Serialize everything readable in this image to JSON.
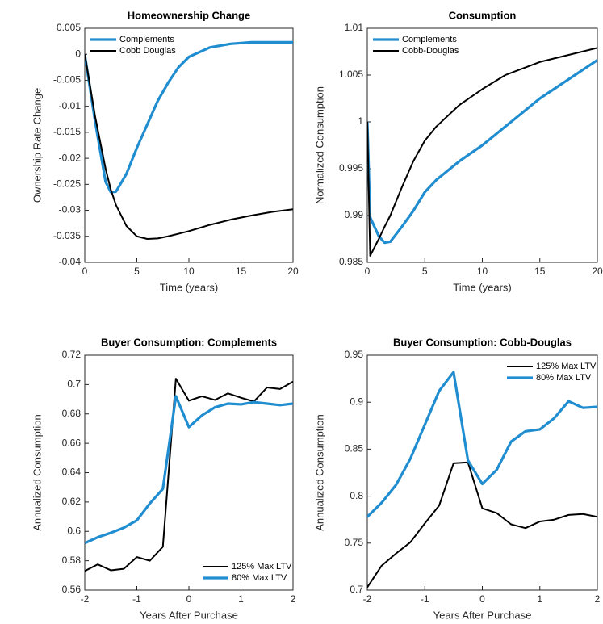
{
  "chart_data": [
    {
      "type": "line",
      "title": "Homeownership Change",
      "xlabel": "Time (years)",
      "ylabel": "Ownership Rate Change",
      "x": [
        0,
        1,
        2,
        2.5,
        3,
        4,
        5,
        6,
        7,
        8,
        9,
        10,
        12,
        14,
        16,
        18,
        20
      ],
      "series": [
        {
          "name": "Complements",
          "color": "#1f8dcf",
          "values": [
            0,
            -0.013,
            -0.0245,
            -0.0265,
            -0.0264,
            -0.023,
            -0.018,
            -0.0135,
            -0.009,
            -0.0055,
            -0.0025,
            -0.0005,
            0.0013,
            0.002,
            0.0023,
            0.0023,
            0.0023
          ]
        },
        {
          "name": "Cobb Douglas",
          "color": "#000000",
          "values": [
            0,
            -0.012,
            -0.022,
            -0.026,
            -0.029,
            -0.033,
            -0.035,
            -0.0355,
            -0.0354,
            -0.035,
            -0.0345,
            -0.034,
            -0.0328,
            -0.0318,
            -0.031,
            -0.0303,
            -0.0298
          ]
        }
      ],
      "xlim": [
        0,
        20
      ],
      "ylim": [
        -0.04,
        0.005
      ],
      "xticks": [
        0,
        5,
        10,
        15,
        20
      ],
      "yticks": [
        -0.04,
        -0.035,
        -0.03,
        -0.025,
        -0.02,
        -0.015,
        -0.01,
        -0.005,
        0,
        0.005
      ],
      "legend": "upper left"
    },
    {
      "type": "line",
      "title": "Consumption",
      "xlabel": "Time (years)",
      "ylabel": "Normalized Consumption",
      "x": [
        0,
        0.25,
        1,
        1.5,
        2,
        3,
        4,
        5,
        6,
        8,
        10,
        12,
        15,
        20
      ],
      "series": [
        {
          "name": "Complements",
          "color": "#1f8dcf",
          "values": [
            1,
            0.9898,
            0.9878,
            0.9871,
            0.9872,
            0.9888,
            0.9905,
            0.9925,
            0.9938,
            0.9958,
            0.9975,
            0.9995,
            1.0025,
            1.0066
          ]
        },
        {
          "name": "Cobb-Douglas",
          "color": "#000000",
          "values": [
            1,
            0.9857,
            0.9875,
            0.9888,
            0.99,
            0.993,
            0.9958,
            0.998,
            0.9995,
            1.0018,
            1.0035,
            1.005,
            1.0064,
            1.0079
          ]
        }
      ],
      "xlim": [
        0,
        20
      ],
      "ylim": [
        0.985,
        1.01
      ],
      "xticks": [
        0,
        5,
        10,
        15,
        20
      ],
      "yticks": [
        0.985,
        0.99,
        0.995,
        1,
        1.005,
        1.01
      ],
      "legend": "upper left"
    },
    {
      "type": "line",
      "title": "Buyer Consumption: Complements",
      "xlabel": "Years After Purchase",
      "ylabel": "Annualized Consumption",
      "x": [
        -2,
        -1.75,
        -1.5,
        -1.25,
        -1,
        -0.75,
        -0.5,
        -0.25,
        0,
        0.25,
        0.5,
        0.75,
        1,
        1.25,
        1.5,
        1.75,
        2
      ],
      "series": [
        {
          "name": "125% Max LTV",
          "color": "#000000",
          "values": [
            0.573,
            0.5775,
            0.5735,
            0.5745,
            0.5825,
            0.58,
            0.5895,
            0.704,
            0.689,
            0.692,
            0.6895,
            0.694,
            0.691,
            0.6885,
            0.698,
            0.697,
            0.702
          ]
        },
        {
          "name": "80% Max LTV",
          "color": "#1f8dcf",
          "values": [
            0.592,
            0.596,
            0.599,
            0.6025,
            0.6075,
            0.619,
            0.629,
            0.692,
            0.671,
            0.679,
            0.6845,
            0.687,
            0.6865,
            0.688,
            0.687,
            0.686,
            0.687
          ]
        }
      ],
      "xlim": [
        -2,
        2
      ],
      "ylim": [
        0.56,
        0.72
      ],
      "xticks": [
        -2,
        -1,
        0,
        1,
        2
      ],
      "yticks": [
        0.56,
        0.58,
        0.6,
        0.62,
        0.64,
        0.66,
        0.68,
        0.7,
        0.72
      ],
      "legend": "lower right"
    },
    {
      "type": "line",
      "title": "Buyer Consumption: Cobb-Douglas",
      "xlabel": "Years After Purchase",
      "ylabel": "Annualized Consumption",
      "x": [
        -2,
        -1.75,
        -1.5,
        -1.25,
        -1,
        -0.75,
        -0.5,
        -0.25,
        0,
        0.25,
        0.5,
        0.75,
        1,
        1.25,
        1.5,
        1.75,
        2
      ],
      "series": [
        {
          "name": "125% Max LTV",
          "color": "#000000",
          "values": [
            0.703,
            0.726,
            0.739,
            0.751,
            0.771,
            0.79,
            0.835,
            0.836,
            0.787,
            0.782,
            0.77,
            0.766,
            0.773,
            0.775,
            0.78,
            0.781,
            0.778
          ]
        },
        {
          "name": "80% Max LTV",
          "color": "#1f8dcf",
          "values": [
            0.778,
            0.793,
            0.812,
            0.84,
            0.876,
            0.912,
            0.932,
            0.838,
            0.813,
            0.828,
            0.858,
            0.869,
            0.871,
            0.883,
            0.901,
            0.894,
            0.895
          ]
        }
      ],
      "xlim": [
        -2,
        2
      ],
      "ylim": [
        0.7,
        0.95
      ],
      "xticks": [
        -2,
        -1,
        0,
        1,
        2
      ],
      "yticks": [
        0.7,
        0.75,
        0.8,
        0.85,
        0.9,
        0.95
      ],
      "legend": "upper right"
    }
  ]
}
